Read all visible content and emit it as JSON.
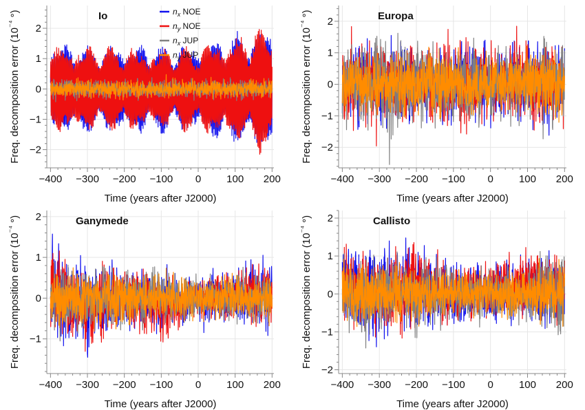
{
  "chart_data": [
    {
      "type": "line",
      "title": "Io",
      "xlabel": "Time (years after J2000)",
      "ylabel": "Freq. decomposition error (10⁻⁴ °)",
      "xlim": [
        -410,
        205
      ],
      "ylim": [
        -2.6,
        2.75
      ],
      "xticks": [
        -400,
        -300,
        -200,
        -100,
        0,
        100,
        200
      ],
      "yticks": [
        -2,
        -1,
        0,
        1,
        2
      ],
      "grid": true,
      "legend": {
        "placement": "top-center",
        "entries": [
          {
            "sym": "n",
            "sub": "x",
            "label": "NOE",
            "color": "#1010ee"
          },
          {
            "sym": "n",
            "sub": "y",
            "label": "NOE",
            "color": "#ee1010"
          },
          {
            "sym": "n",
            "sub": "x",
            "label": "JUP",
            "color": "#808080"
          },
          {
            "sym": "n",
            "sub": "y",
            "label": "JUP",
            "color": "#ff8c00"
          }
        ]
      },
      "series": [
        {
          "key": "nx_NOE",
          "color": "#1010ee",
          "envelope": {
            "x": [
              -400,
              -300,
              -200,
              -100,
              0,
              100,
              200
            ],
            "amp": [
              1.7,
              1.5,
              1.6,
              1.5,
              1.6,
              1.9,
              2.2
            ]
          }
        },
        {
          "key": "ny_NOE",
          "color": "#ee1010",
          "envelope": {
            "x": [
              -400,
              -300,
              -200,
              -100,
              0,
              100,
              200
            ],
            "amp": [
              1.6,
              1.5,
              1.5,
              1.4,
              1.5,
              1.9,
              2.3
            ]
          }
        },
        {
          "key": "nx_JUP",
          "color": "#808080",
          "envelope": {
            "x": [
              -400,
              -300,
              -200,
              -100,
              0,
              100,
              200
            ],
            "amp": [
              0.45,
              0.45,
              0.45,
              0.45,
              0.45,
              0.45,
              0.45
            ]
          }
        },
        {
          "key": "ny_JUP",
          "color": "#ff8c00",
          "envelope": {
            "x": [
              -400,
              -300,
              -200,
              -100,
              0,
              100,
              200
            ],
            "amp": [
              0.4,
              0.4,
              0.4,
              0.4,
              0.4,
              0.4,
              0.4
            ]
          }
        }
      ]
    },
    {
      "type": "line",
      "title": "Europa",
      "xlabel": "Time (years after J2000)",
      "ylabel": "Freq. decomposition error (10⁻⁴ °)",
      "xlim": [
        -410,
        205
      ],
      "ylim": [
        -2.65,
        2.5
      ],
      "xticks": [
        -400,
        -300,
        -200,
        -100,
        0,
        100,
        200
      ],
      "yticks": [
        -2,
        -1,
        0,
        1,
        2
      ],
      "grid": true,
      "series": [
        {
          "key": "nx_NOE",
          "color": "#1010ee",
          "envelope": {
            "x": [
              -400,
              -300,
              -200,
              -100,
              0,
              100,
              200
            ],
            "amp": [
              1.6,
              1.8,
              1.7,
              1.6,
              1.6,
              1.7,
              1.8
            ]
          }
        },
        {
          "key": "ny_NOE",
          "color": "#ee1010",
          "envelope": {
            "x": [
              -400,
              -300,
              -200,
              -100,
              0,
              100,
              200
            ],
            "amp": [
              1.6,
              1.7,
              1.8,
              1.7,
              1.7,
              1.7,
              1.8
            ]
          }
        },
        {
          "key": "nx_JUP",
          "color": "#808080",
          "envelope": {
            "x": [
              -400,
              -300,
              -200,
              -100,
              0,
              100,
              200
            ],
            "amp": [
              1.8,
              2.2,
              1.8,
              1.7,
              1.6,
              1.6,
              1.9
            ]
          }
        },
        {
          "key": "ny_JUP",
          "color": "#ff8c00",
          "envelope": {
            "x": [
              -400,
              -300,
              -200,
              -100,
              0,
              100,
              200
            ],
            "amp": [
              1.2,
              1.3,
              1.3,
              1.3,
              1.2,
              1.3,
              1.4
            ]
          }
        }
      ]
    },
    {
      "type": "line",
      "title": "Ganymede",
      "xlabel": "Time (years after J2000)",
      "ylabel": "Freq. decomposition error (10⁻⁴ °)",
      "xlim": [
        -410,
        205
      ],
      "ylim": [
        -1.85,
        2.15
      ],
      "xticks": [
        -400,
        -300,
        -200,
        -100,
        0,
        100,
        200
      ],
      "yticks": [
        -1,
        0,
        1,
        2
      ],
      "grid": true,
      "series": [
        {
          "key": "nx_NOE",
          "color": "#1010ee",
          "envelope": {
            "x": [
              -400,
              -300,
              -200,
              -100,
              0,
              100,
              200
            ],
            "amp": [
              1.3,
              1.5,
              0.9,
              1.0,
              0.7,
              0.9,
              1.1
            ]
          },
          "offset": {
            "x": [
              -400,
              -300,
              -200,
              -100,
              0,
              100,
              200
            ],
            "y": [
              0.1,
              -0.1,
              0.0,
              -0.1,
              0.0,
              0.1,
              0.1
            ]
          }
        },
        {
          "key": "ny_NOE",
          "color": "#ee1010",
          "envelope": {
            "x": [
              -400,
              -300,
              -200,
              -100,
              0,
              100,
              200
            ],
            "amp": [
              1.4,
              1.4,
              1.0,
              1.0,
              0.7,
              0.9,
              1.1
            ]
          },
          "offset": {
            "x": [
              -400,
              -300,
              -200,
              -100,
              0,
              100,
              200
            ],
            "y": [
              0.2,
              -0.3,
              0.1,
              -0.3,
              0.0,
              0.1,
              0.0
            ]
          }
        },
        {
          "key": "nx_JUP",
          "color": "#808080",
          "envelope": {
            "x": [
              -400,
              -300,
              -200,
              -100,
              0,
              100,
              200
            ],
            "amp": [
              1.1,
              1.1,
              0.9,
              0.9,
              0.8,
              0.8,
              0.9
            ]
          }
        },
        {
          "key": "ny_JUP",
          "color": "#ff8c00",
          "envelope": {
            "x": [
              -400,
              -300,
              -200,
              -100,
              0,
              100,
              200
            ],
            "amp": [
              0.9,
              0.9,
              0.8,
              0.8,
              0.7,
              0.7,
              0.8
            ]
          }
        }
      ]
    },
    {
      "type": "line",
      "title": "Callisto",
      "xlabel": "Time (years after J2000)",
      "ylabel": "Freq. decomposition error (10⁻⁴ °)",
      "xlim": [
        -410,
        205
      ],
      "ylim": [
        -2.1,
        2.2
      ],
      "xticks": [
        -400,
        -300,
        -200,
        -100,
        0,
        100,
        200
      ],
      "yticks": [
        -2,
        -1,
        0,
        1,
        2
      ],
      "grid": true,
      "series": [
        {
          "key": "nx_NOE",
          "color": "#1010ee",
          "envelope": {
            "x": [
              -400,
              -300,
              -200,
              -100,
              0,
              100,
              200
            ],
            "amp": [
              1.5,
              1.6,
              1.4,
              1.1,
              1.0,
              1.1,
              1.4
            ]
          },
          "offset": {
            "x": [
              -400,
              -300,
              -200,
              -100,
              0,
              100,
              200
            ],
            "y": [
              0.1,
              0.1,
              0.2,
              -0.1,
              0.0,
              0.2,
              0.0
            ]
          }
        },
        {
          "key": "ny_NOE",
          "color": "#ee1010",
          "envelope": {
            "x": [
              -400,
              -300,
              -200,
              -100,
              0,
              100,
              200
            ],
            "amp": [
              1.4,
              1.3,
              1.5,
              1.0,
              1.0,
              1.1,
              1.3
            ]
          },
          "offset": {
            "x": [
              -400,
              -300,
              -200,
              -100,
              0,
              100,
              200
            ],
            "y": [
              0.2,
              0.0,
              0.2,
              -0.1,
              0.1,
              0.3,
              0.1
            ]
          }
        },
        {
          "key": "nx_JUP",
          "color": "#808080",
          "envelope": {
            "x": [
              -400,
              -300,
              -200,
              -100,
              0,
              100,
              200
            ],
            "amp": [
              1.4,
              1.3,
              1.2,
              1.0,
              1.0,
              1.0,
              1.6
            ]
          }
        },
        {
          "key": "ny_JUP",
          "color": "#ff8c00",
          "envelope": {
            "x": [
              -400,
              -300,
              -200,
              -100,
              0,
              100,
              200
            ],
            "amp": [
              1.0,
              1.0,
              1.0,
              0.8,
              0.8,
              0.8,
              1.0
            ]
          }
        }
      ]
    }
  ]
}
